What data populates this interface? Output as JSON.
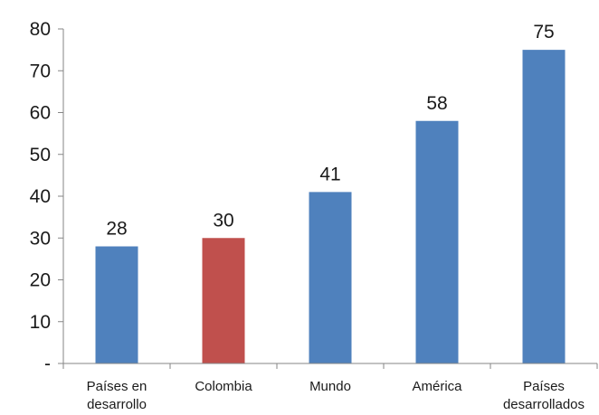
{
  "chart_data": {
    "type": "bar",
    "categories": [
      [
        "Países en",
        "desarrollo"
      ],
      [
        "Colombia"
      ],
      [
        "Mundo"
      ],
      [
        "América"
      ],
      [
        "Países",
        "desarrollados"
      ]
    ],
    "values": [
      28,
      30,
      41,
      58,
      75
    ],
    "bar_colors": [
      "#4f81bd",
      "#c0504d",
      "#4f81bd",
      "#4f81bd",
      "#4f81bd"
    ],
    "ylim": [
      0,
      80
    ],
    "yticks": [
      0,
      10,
      20,
      30,
      40,
      50,
      60,
      70,
      80
    ],
    "ytick_labels": [
      "-",
      "10",
      "20",
      "30",
      "40",
      "50",
      "60",
      "70",
      "80"
    ],
    "data_labels": true,
    "grid": false,
    "legend": "none"
  }
}
